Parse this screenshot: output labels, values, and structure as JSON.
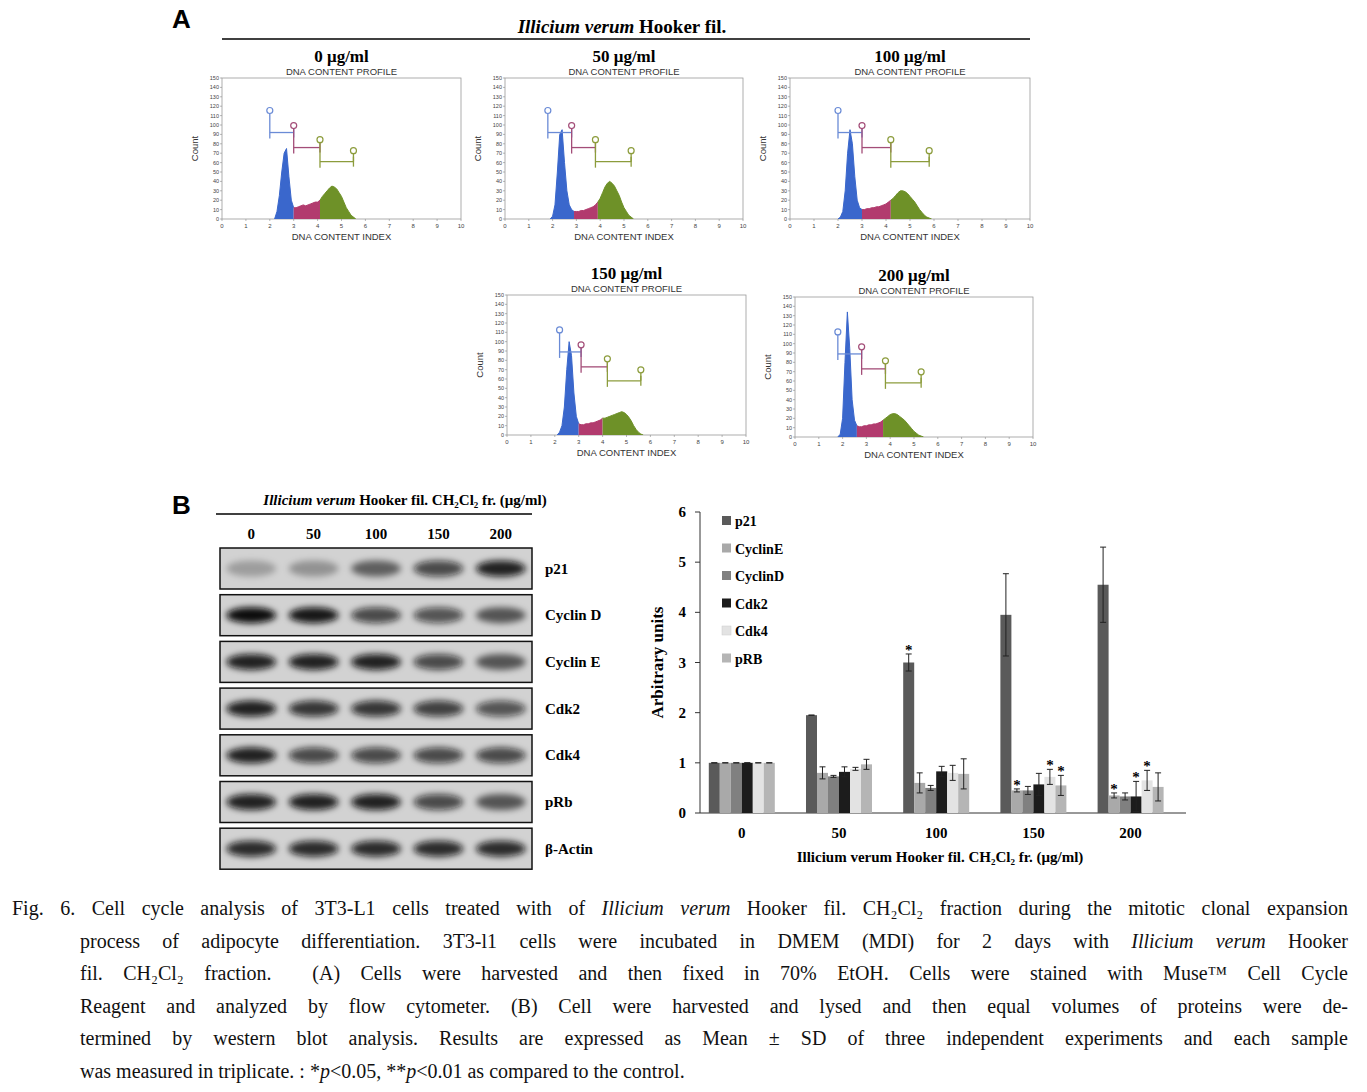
{
  "chart_data": [
    {
      "type": "area",
      "title": "0 μg/ml",
      "subtitle": "DNA CONTENT PROFILE",
      "xlabel": "DNA CONTENT INDEX",
      "ylabel": "Count",
      "xlim": [
        0,
        10
      ],
      "ylim": [
        0,
        150
      ],
      "xticks": [
        0,
        1,
        2,
        3,
        4,
        5,
        6,
        7,
        8,
        9,
        10
      ],
      "yticks": [
        0,
        10,
        20,
        30,
        40,
        50,
        60,
        70,
        80,
        90,
        100,
        110,
        120,
        130,
        140,
        150
      ],
      "series": [
        {
          "color": "#3a67cc",
          "x": [
            2.2,
            2.3,
            2.4,
            2.5,
            2.6,
            2.7,
            2.8,
            2.9,
            3.0
          ],
          "values": [
            0,
            8,
            25,
            50,
            70,
            75,
            45,
            20,
            12
          ]
        },
        {
          "color": "#b23b6e",
          "x": [
            3.0,
            3.1,
            3.2,
            3.3,
            3.4,
            3.5,
            3.6,
            3.7,
            3.8,
            3.9,
            4.0,
            4.1
          ],
          "values": [
            12,
            12,
            13,
            14,
            15,
            14,
            15,
            16,
            17,
            18,
            18,
            20
          ]
        },
        {
          "color": "#6e9128",
          "x": [
            4.1,
            4.2,
            4.3,
            4.4,
            4.5,
            4.6,
            4.7,
            4.8,
            4.9,
            5.0,
            5.1,
            5.2,
            5.3,
            5.4,
            5.5,
            5.6
          ],
          "values": [
            20,
            24,
            27,
            30,
            33,
            35,
            34,
            32,
            28,
            24,
            18,
            12,
            8,
            4,
            2,
            0
          ]
        }
      ],
      "gates": [
        {
          "x": [
            2.0,
            3.0
          ],
          "y": 92,
          "color": "#6a8bd6"
        },
        {
          "x": [
            3.0,
            4.1
          ],
          "y": 76,
          "color": "#a34d78"
        },
        {
          "x": [
            4.1,
            5.5
          ],
          "y": 61,
          "color": "#8c9c3c"
        }
      ]
    },
    {
      "type": "area",
      "title": "50 μg/ml",
      "subtitle": "DNA CONTENT PROFILE",
      "xlabel": "DNA CONTENT INDEX",
      "ylabel": "Count",
      "xlim": [
        0,
        10
      ],
      "ylim": [
        0,
        150
      ],
      "xticks": [
        0,
        1,
        2,
        3,
        4,
        5,
        6,
        7,
        8,
        9,
        10
      ],
      "yticks": [
        0,
        10,
        20,
        30,
        40,
        50,
        60,
        70,
        80,
        90,
        100,
        110,
        120,
        130,
        140,
        150
      ],
      "series": [
        {
          "color": "#3a67cc",
          "x": [
            1.9,
            2.0,
            2.1,
            2.2,
            2.3,
            2.4,
            2.5,
            2.6,
            2.7,
            2.8,
            2.9
          ],
          "values": [
            0,
            3,
            15,
            50,
            90,
            95,
            60,
            30,
            15,
            10,
            8
          ]
        },
        {
          "color": "#b23b6e",
          "x": [
            2.9,
            3.0,
            3.1,
            3.2,
            3.3,
            3.4,
            3.5,
            3.6,
            3.7,
            3.8,
            3.9
          ],
          "values": [
            8,
            8,
            8,
            9,
            9,
            10,
            11,
            12,
            13,
            15,
            18
          ]
        },
        {
          "color": "#6e9128",
          "x": [
            3.9,
            4.0,
            4.1,
            4.2,
            4.3,
            4.4,
            4.5,
            4.6,
            4.7,
            4.8,
            4.9,
            5.0,
            5.1,
            5.2,
            5.3,
            5.4
          ],
          "values": [
            18,
            22,
            28,
            34,
            38,
            40,
            38,
            35,
            30,
            25,
            18,
            12,
            8,
            4,
            2,
            0
          ]
        }
      ],
      "gates": [
        {
          "x": [
            1.8,
            2.8
          ],
          "y": 92,
          "color": "#6a8bd6"
        },
        {
          "x": [
            2.8,
            3.8
          ],
          "y": 76,
          "color": "#a34d78"
        },
        {
          "x": [
            3.8,
            5.3
          ],
          "y": 61,
          "color": "#8c9c3c"
        }
      ]
    },
    {
      "type": "area",
      "title": "100 μg/ml",
      "subtitle": "DNA CONTENT PROFILE",
      "xlabel": "DNA CONTENT INDEX",
      "ylabel": "Count",
      "xlim": [
        0,
        10
      ],
      "ylim": [
        0,
        150
      ],
      "xticks": [
        0,
        1,
        2,
        3,
        4,
        5,
        6,
        7,
        8,
        9,
        10
      ],
      "yticks": [
        0,
        10,
        20,
        30,
        40,
        50,
        60,
        70,
        80,
        90,
        100,
        110,
        120,
        130,
        140,
        150
      ],
      "series": [
        {
          "color": "#3a67cc",
          "x": [
            2.0,
            2.1,
            2.2,
            2.3,
            2.4,
            2.5,
            2.6,
            2.7,
            2.8,
            2.9,
            3.0
          ],
          "values": [
            0,
            2,
            8,
            30,
            70,
            95,
            80,
            45,
            20,
            12,
            10
          ]
        },
        {
          "color": "#b23b6e",
          "x": [
            3.0,
            3.1,
            3.2,
            3.3,
            3.4,
            3.5,
            3.6,
            3.7,
            3.8,
            3.9,
            4.0,
            4.1,
            4.2
          ],
          "values": [
            10,
            10,
            11,
            11,
            12,
            12,
            13,
            13,
            14,
            15,
            16,
            18,
            20
          ]
        },
        {
          "color": "#6e9128",
          "x": [
            4.2,
            4.3,
            4.4,
            4.5,
            4.6,
            4.7,
            4.8,
            4.9,
            5.0,
            5.1,
            5.2,
            5.3,
            5.4,
            5.5,
            5.6,
            5.7,
            5.8,
            5.9
          ],
          "values": [
            20,
            22,
            25,
            28,
            30,
            30,
            29,
            27,
            24,
            21,
            18,
            14,
            10,
            7,
            4,
            2,
            1,
            0
          ]
        }
      ],
      "gates": [
        {
          "x": [
            2.0,
            3.0
          ],
          "y": 92,
          "color": "#6a8bd6"
        },
        {
          "x": [
            3.0,
            4.2
          ],
          "y": 76,
          "color": "#a34d78"
        },
        {
          "x": [
            4.2,
            5.8
          ],
          "y": 61,
          "color": "#8c9c3c"
        }
      ]
    },
    {
      "type": "area",
      "title": "150 μg/ml",
      "subtitle": "DNA CONTENT PROFILE",
      "xlabel": "DNA CONTENT INDEX",
      "ylabel": "Count",
      "xlim": [
        0,
        10
      ],
      "ylim": [
        0,
        150
      ],
      "xticks": [
        0,
        1,
        2,
        3,
        4,
        5,
        6,
        7,
        8,
        9,
        10
      ],
      "yticks": [
        0,
        10,
        20,
        30,
        40,
        50,
        60,
        70,
        80,
        90,
        100,
        110,
        120,
        130,
        140,
        150
      ],
      "series": [
        {
          "color": "#3a67cc",
          "x": [
            2.1,
            2.2,
            2.3,
            2.4,
            2.5,
            2.6,
            2.7,
            2.8,
            2.9,
            3.0
          ],
          "values": [
            0,
            3,
            10,
            30,
            70,
            100,
            85,
            45,
            20,
            12
          ]
        },
        {
          "color": "#b23b6e",
          "x": [
            3.0,
            3.1,
            3.2,
            3.3,
            3.4,
            3.5,
            3.6,
            3.7,
            3.8,
            3.9,
            4.0
          ],
          "values": [
            12,
            11,
            11,
            12,
            12,
            13,
            13,
            14,
            15,
            16,
            18
          ]
        },
        {
          "color": "#6e9128",
          "x": [
            4.0,
            4.1,
            4.2,
            4.3,
            4.4,
            4.5,
            4.6,
            4.7,
            4.8,
            4.9,
            5.0,
            5.1,
            5.2,
            5.3,
            5.4,
            5.5,
            5.6,
            5.7
          ],
          "values": [
            18,
            18,
            19,
            20,
            21,
            22,
            23,
            24,
            25,
            24,
            22,
            19,
            15,
            10,
            6,
            3,
            1,
            0
          ]
        }
      ],
      "gates": [
        {
          "x": [
            2.2,
            3.1
          ],
          "y": 89,
          "color": "#6a8bd6"
        },
        {
          "x": [
            3.1,
            4.2
          ],
          "y": 73,
          "color": "#a34d78"
        },
        {
          "x": [
            4.2,
            5.6
          ],
          "y": 58,
          "color": "#8c9c3c"
        }
      ]
    },
    {
      "type": "area",
      "title": "200 μg/ml",
      "subtitle": "DNA CONTENT PROFILE",
      "xlabel": "DNA CONTENT INDEX",
      "ylabel": "Count",
      "xlim": [
        0,
        10
      ],
      "ylim": [
        0,
        150
      ],
      "xticks": [
        0,
        1,
        2,
        3,
        4,
        5,
        6,
        7,
        8,
        9,
        10
      ],
      "yticks": [
        0,
        10,
        20,
        30,
        40,
        50,
        60,
        70,
        80,
        90,
        100,
        110,
        120,
        130,
        140,
        150
      ],
      "series": [
        {
          "color": "#3a67cc",
          "x": [
            1.8,
            1.9,
            2.0,
            2.1,
            2.2,
            2.3,
            2.4,
            2.5,
            2.6
          ],
          "values": [
            0,
            3,
            20,
            80,
            134,
            95,
            40,
            18,
            12
          ]
        },
        {
          "color": "#b23b6e",
          "x": [
            2.6,
            2.7,
            2.8,
            2.9,
            3.0,
            3.1,
            3.2,
            3.3,
            3.4,
            3.5,
            3.6,
            3.7
          ],
          "values": [
            12,
            11,
            11,
            12,
            12,
            13,
            13,
            14,
            14,
            15,
            16,
            18
          ]
        },
        {
          "color": "#6e9128",
          "x": [
            3.7,
            3.8,
            3.9,
            4.0,
            4.1,
            4.2,
            4.3,
            4.4,
            4.5,
            4.6,
            4.7,
            4.8,
            4.9,
            5.0,
            5.1,
            5.2,
            5.3,
            5.4
          ],
          "values": [
            18,
            20,
            22,
            24,
            25,
            25,
            24,
            22,
            20,
            18,
            15,
            12,
            9,
            6,
            4,
            2,
            1,
            0
          ]
        }
      ],
      "gates": [
        {
          "x": [
            1.8,
            2.8
          ],
          "y": 89,
          "color": "#6a8bd6"
        },
        {
          "x": [
            2.8,
            3.8
          ],
          "y": 73,
          "color": "#a34d78"
        },
        {
          "x": [
            3.8,
            5.3
          ],
          "y": 58,
          "color": "#8c9c3c"
        }
      ]
    },
    {
      "type": "bar",
      "xlabel": "Illicium verum Hooker fil. CH₂Cl₂ fr. (μg/ml)",
      "ylabel": "Arbitrary units",
      "categories": [
        "0",
        "50",
        "100",
        "150",
        "200"
      ],
      "ylim": [
        0,
        6
      ],
      "yticks": [
        0,
        1,
        2,
        3,
        4,
        5,
        6
      ],
      "legend": "upper left",
      "series": [
        {
          "name": "p21",
          "color": "#5a5a5a",
          "values": [
            1,
            1.95,
            3.0,
            3.95,
            4.55
          ],
          "errors": [
            0,
            0,
            0.17,
            0.82,
            0.75
          ],
          "significance": [
            null,
            null,
            "*",
            null,
            null
          ]
        },
        {
          "name": "CyclinE",
          "color": "#a9a9a9",
          "values": [
            1,
            0.8,
            0.6,
            0.45,
            0.35
          ],
          "errors": [
            0,
            0.12,
            0.2,
            0.03,
            0.05
          ],
          "significance": [
            null,
            null,
            null,
            "*",
            "*"
          ]
        },
        {
          "name": "CyclinD",
          "color": "#808080",
          "values": [
            1,
            0.73,
            0.5,
            0.45,
            0.33
          ],
          "errors": [
            0,
            0.02,
            0.05,
            0.08,
            0.07
          ],
          "significance": [
            null,
            null,
            null,
            null,
            null
          ]
        },
        {
          "name": "Cdk2",
          "color": "#1c1c1c",
          "values": [
            1,
            0.82,
            0.83,
            0.57,
            0.33
          ],
          "errors": [
            0,
            0.1,
            0.1,
            0.22,
            0.3
          ],
          "significance": [
            null,
            null,
            null,
            null,
            "*"
          ]
        },
        {
          "name": "Cdk4",
          "color": "#e3e3e3",
          "values": [
            1,
            0.88,
            0.8,
            0.72,
            0.65
          ],
          "errors": [
            0,
            0.03,
            0.15,
            0.15,
            0.2
          ],
          "significance": [
            null,
            null,
            null,
            "*",
            "*"
          ]
        },
        {
          "name": "pRB",
          "color": "#b5b5b5",
          "values": [
            1,
            0.97,
            0.78,
            0.55,
            0.52
          ],
          "errors": [
            0,
            0.1,
            0.3,
            0.2,
            0.28
          ],
          "significance": [
            null,
            null,
            null,
            "*",
            null
          ]
        }
      ]
    }
  ],
  "figure": {
    "panel_labels": [
      "A",
      "B"
    ],
    "panel_a_header": [
      {
        "t": "Illicium verum",
        "i": true
      },
      {
        "t": " Hooker fil.",
        "i": false
      }
    ],
    "blot": {
      "header": [
        {
          "t": "Illicium verum",
          "i": true
        },
        {
          "t": " Hooker fil. CH₂Cl₂ fr.  (μg/ml)",
          "i": false
        }
      ],
      "lanes": [
        "0",
        "50",
        "100",
        "150",
        "200"
      ],
      "rows": [
        {
          "label": "p21",
          "bands": [
            0.25,
            0.3,
            0.55,
            0.7,
            0.9
          ]
        },
        {
          "label": "Cyclin D",
          "bands": [
            1,
            0.95,
            0.7,
            0.65,
            0.6
          ]
        },
        {
          "label": "Cyclin E",
          "bands": [
            0.9,
            0.9,
            0.9,
            0.7,
            0.6
          ]
        },
        {
          "label": "Cdk2",
          "bands": [
            0.9,
            0.8,
            0.8,
            0.75,
            0.65
          ]
        },
        {
          "label": "Cdk4",
          "bands": [
            0.9,
            0.7,
            0.7,
            0.7,
            0.7
          ]
        },
        {
          "label": "pRb",
          "bands": [
            0.9,
            0.9,
            0.9,
            0.7,
            0.6
          ]
        },
        {
          "label": "β-Actin",
          "bands": [
            0.85,
            0.85,
            0.85,
            0.85,
            0.85
          ]
        }
      ]
    },
    "caption": [
      [
        {
          "t": "Fig. 6. Cell cycle analysis of 3T3-L1 cells treated with of ",
          "i": false
        },
        {
          "t": "Illicium verum",
          "i": true
        },
        {
          "t": " Hooker fil. CH₂Cl₂ fraction during the mitotic clonal expansion",
          "i": false
        }
      ],
      [
        {
          "t": "process of adipocyte differentiation. 3T3-l1 cells were incubated in DMEM (MDI) for 2 days with ",
          "i": false
        },
        {
          "t": "Illicium verum",
          "i": true
        },
        {
          "t": " Hooker",
          "i": false
        }
      ],
      [
        {
          "t": "fil. CH₂Cl₂ fraction.  (A) Cells were harvested and then fixed in 70% EtOH. Cells were stained with Muse™ Cell Cycle",
          "i": false
        }
      ],
      [
        {
          "t": "Reagent and analyzed by flow cytometer. (B) Cell were harvested and lysed and then equal volumes of proteins were de-",
          "i": false
        }
      ],
      [
        {
          "t": "termined by western blot analysis. Results are expressed as Mean ± SD of three independent experiments and each sample",
          "i": false
        }
      ],
      [
        {
          "t": "was measured in triplicate. : *",
          "i": false
        },
        {
          "t": "p",
          "i": true
        },
        {
          "t": "<0.05, **",
          "i": false
        },
        {
          "t": "p",
          "i": true
        },
        {
          "t": "<0.01 as compared to the control.",
          "i": false
        }
      ]
    ]
  }
}
